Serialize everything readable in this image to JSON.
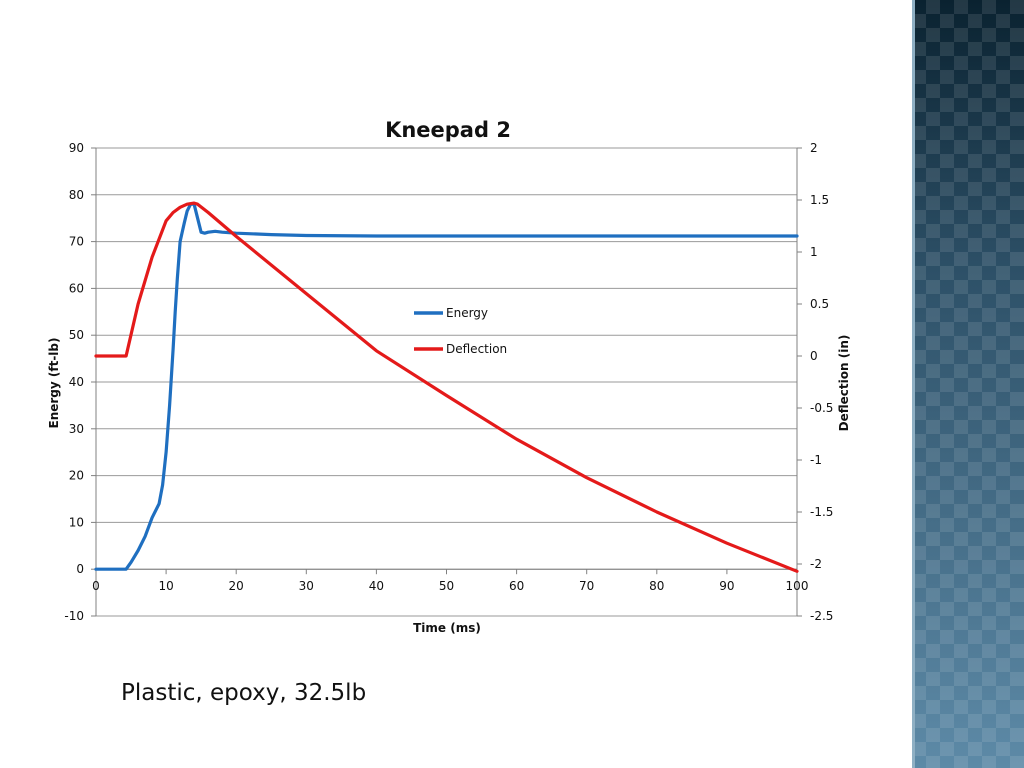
{
  "caption": "Plastic, epoxy, 32.5lb",
  "colors": {
    "energy": "#1f6fc0",
    "deflection": "#e41a1a",
    "grid": "#9a9a9a",
    "panel": "#3e6a86"
  },
  "chart_data": {
    "type": "line",
    "title": "Kneepad 2",
    "xlabel": "Time (ms)",
    "ylabel": "Energy (ft-lb)",
    "y2label": "Deflection (in)",
    "xlim": [
      0,
      100
    ],
    "ylim": [
      -10,
      90
    ],
    "y2lim": [
      -2.5,
      2
    ],
    "grid": true,
    "legend_position": "center-right",
    "x_ticks": [
      "0",
      "10",
      "20",
      "30",
      "40",
      "50",
      "60",
      "70",
      "80",
      "90",
      "100"
    ],
    "y_ticks": [
      "-10",
      "0",
      "10",
      "20",
      "30",
      "40",
      "50",
      "60",
      "70",
      "80",
      "90"
    ],
    "y2_ticks": [
      "-2.5",
      "-2",
      "-1.5",
      "-1",
      "-0.5",
      "0",
      "0.5",
      "1",
      "1.5",
      "2"
    ],
    "series": [
      {
        "name": "Energy",
        "axis": "left",
        "x": [
          0,
          4.3,
          5,
          6,
          7,
          8,
          9,
          9.5,
          10,
          10.5,
          11,
          11.3,
          11.6,
          11.8,
          12,
          12.3,
          12.6,
          13,
          13.5,
          14,
          14.5,
          15,
          15.5,
          16,
          17,
          18,
          20,
          25,
          30,
          40,
          50,
          60,
          70,
          80,
          90,
          100
        ],
        "y": [
          0,
          0,
          1.5,
          4,
          7,
          11,
          14,
          18,
          25,
          35,
          47,
          55,
          62,
          66,
          70,
          72,
          74,
          76.5,
          78,
          78,
          75,
          72,
          71.8,
          72,
          72.2,
          72,
          71.8,
          71.5,
          71.3,
          71.2,
          71.2,
          71.2,
          71.2,
          71.2,
          71.2,
          71.2
        ]
      },
      {
        "name": "Deflection",
        "axis": "right",
        "x": [
          0,
          4.3,
          6,
          8,
          10,
          11,
          12,
          13,
          14,
          14.5,
          16,
          20,
          30,
          40,
          50,
          60,
          70,
          80,
          90,
          100
        ],
        "y": [
          0,
          0,
          0.5,
          0.95,
          1.3,
          1.38,
          1.43,
          1.46,
          1.47,
          1.46,
          1.38,
          1.15,
          0.6,
          0.05,
          -0.38,
          -0.8,
          -1.17,
          -1.5,
          -1.8,
          -2.07
        ]
      }
    ]
  }
}
